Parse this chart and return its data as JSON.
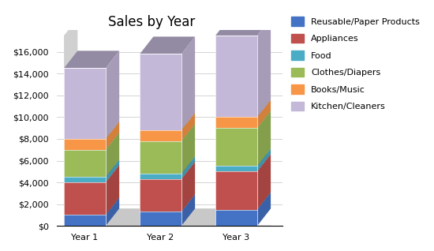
{
  "title": "Sales by Year",
  "categories": [
    "Year 1",
    "Year 2",
    "Year 3"
  ],
  "series": [
    {
      "label": "Reusable/Paper Products",
      "color": "#4472C4",
      "values": [
        1000,
        1300,
        1500
      ]
    },
    {
      "label": "Appliances",
      "color": "#C0504D",
      "values": [
        3000,
        3000,
        3500
      ]
    },
    {
      "label": "Food",
      "color": "#4BACC6",
      "values": [
        500,
        500,
        500
      ]
    },
    {
      "label": "Clothes/Diapers",
      "color": "#9BBB59",
      "values": [
        2500,
        3000,
        3500
      ]
    },
    {
      "label": "Books/Music",
      "color": "#F79646",
      "values": [
        1000,
        1000,
        1000
      ]
    },
    {
      "label": "Kitchen/Cleaners",
      "color": "#C4B8D9",
      "values": [
        6500,
        7000,
        7500
      ]
    }
  ],
  "ylim": [
    0,
    18000
  ],
  "yticks": [
    0,
    2000,
    4000,
    6000,
    8000,
    10000,
    12000,
    14000,
    16000
  ],
  "background_color": "#FFFFFF",
  "grid_color": "#CCCCCC",
  "title_fontsize": 12,
  "tick_fontsize": 8,
  "legend_fontsize": 8
}
